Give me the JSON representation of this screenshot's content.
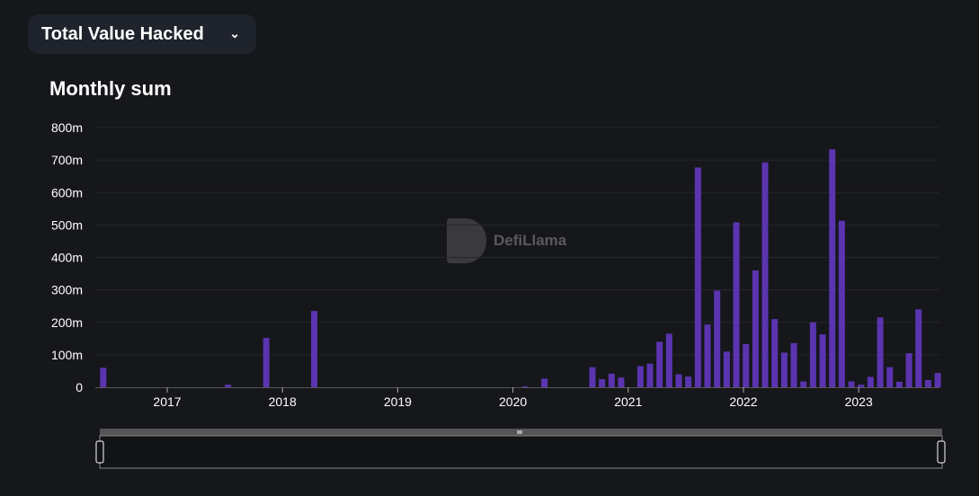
{
  "dropdown": {
    "label": "Total Value Hacked",
    "chevron": "chevron-down-icon"
  },
  "watermark": "DefiLlama",
  "colors": {
    "bar": "#5b34b0",
    "background": "#16171b",
    "grid": "#24262e"
  },
  "chart_data": {
    "type": "bar",
    "title": "Monthly sum",
    "xlabel": "",
    "ylabel": "",
    "ylim": [
      0,
      800
    ],
    "yticks": [
      "0",
      "100m",
      "200m",
      "300m",
      "400m",
      "500m",
      "600m",
      "700m",
      "800m"
    ],
    "xticks": [
      "2017",
      "2018",
      "2019",
      "2020",
      "2021",
      "2022",
      "2023"
    ],
    "start_month": "2016-06",
    "unit": "millions USD",
    "points": [
      [
        "2016-06",
        60
      ],
      [
        "2017-07",
        8
      ],
      [
        "2017-11",
        152
      ],
      [
        "2018-04",
        235
      ],
      [
        "2020-02",
        3
      ],
      [
        "2020-04",
        27
      ],
      [
        "2020-09",
        62
      ],
      [
        "2020-10",
        25
      ],
      [
        "2020-11",
        42
      ],
      [
        "2020-12",
        30
      ],
      [
        "2021-02",
        65
      ],
      [
        "2021-03",
        73
      ],
      [
        "2021-04",
        140
      ],
      [
        "2021-05",
        165
      ],
      [
        "2021-06",
        40
      ],
      [
        "2021-07",
        33
      ],
      [
        "2021-08",
        677
      ],
      [
        "2021-09",
        193
      ],
      [
        "2021-10",
        298
      ],
      [
        "2021-11",
        110
      ],
      [
        "2021-12",
        508
      ],
      [
        "2022-01",
        133
      ],
      [
        "2022-02",
        360
      ],
      [
        "2022-03",
        693
      ],
      [
        "2022-04",
        210
      ],
      [
        "2022-05",
        107
      ],
      [
        "2022-06",
        136
      ],
      [
        "2022-07",
        18
      ],
      [
        "2022-08",
        200
      ],
      [
        "2022-09",
        163
      ],
      [
        "2022-10",
        733
      ],
      [
        "2022-11",
        513
      ],
      [
        "2022-12",
        18
      ],
      [
        "2023-01",
        8
      ],
      [
        "2023-02",
        32
      ],
      [
        "2023-03",
        215
      ],
      [
        "2023-04",
        62
      ],
      [
        "2023-05",
        17
      ],
      [
        "2023-06",
        105
      ],
      [
        "2023-07",
        240
      ],
      [
        "2023-08",
        22
      ],
      [
        "2023-09",
        44
      ]
    ]
  }
}
